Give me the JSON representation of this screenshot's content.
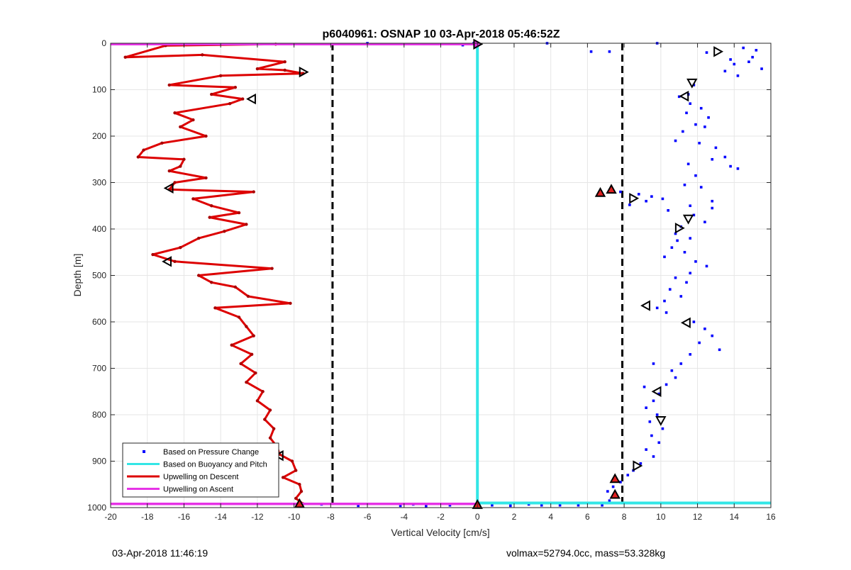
{
  "chart_data": {
    "type": "scatter",
    "title": "p6040961: OSNAP 10 03-Apr-2018 05:46:52Z",
    "xlabel": "Vertical Velocity [cm/s]",
    "ylabel": "Depth [m]",
    "xlim": [
      -20,
      16
    ],
    "ylim": [
      1000,
      0
    ],
    "y_reversed": true,
    "grid": true,
    "x_ticks": [
      "-20",
      "-18",
      "-16",
      "-14",
      "-12",
      "-10",
      "-8",
      "-6",
      "-4",
      "-2",
      "0",
      "2",
      "4",
      "6",
      "8",
      "10",
      "12",
      "14",
      "16"
    ],
    "y_ticks": [
      "0",
      "100",
      "200",
      "300",
      "400",
      "500",
      "600",
      "700",
      "800",
      "900",
      "1000"
    ],
    "legend_position": "bottom-left",
    "legend": [
      {
        "label": "Based on Pressure Change",
        "color": "#0000ff",
        "style": "dot"
      },
      {
        "label": "Based on Buoyancy and Pitch",
        "color": "#33e6e6",
        "style": "line"
      },
      {
        "label": "Upwelling on Descent",
        "color": "#dd0000",
        "style": "line"
      },
      {
        "label": "Upwelling on Ascent",
        "color": "#e633e6",
        "style": "line"
      }
    ],
    "reference_lines_x": [
      -7.9,
      7.9
    ],
    "series": [
      {
        "name": "Based on Pressure Change",
        "color": "#0000ff",
        "points": [
          [
            14.5,
            10
          ],
          [
            15,
            30
          ],
          [
            14,
            45
          ],
          [
            13.5,
            60
          ],
          [
            15.5,
            55
          ],
          [
            12.5,
            20
          ],
          [
            14.2,
            70
          ],
          [
            14.8,
            40
          ],
          [
            15.2,
            15
          ],
          [
            13.8,
            35
          ],
          [
            11.8,
            90
          ],
          [
            11.5,
            110
          ],
          [
            11,
            115
          ],
          [
            11.6,
            130
          ],
          [
            12.2,
            140
          ],
          [
            11.4,
            150
          ],
          [
            12.6,
            160
          ],
          [
            11.9,
            175
          ],
          [
            12.4,
            180
          ],
          [
            11.2,
            190
          ],
          [
            10.8,
            210
          ],
          [
            12.1,
            215
          ],
          [
            13,
            225
          ],
          [
            13.5,
            245
          ],
          [
            13.8,
            265
          ],
          [
            14.2,
            270
          ],
          [
            12.8,
            250
          ],
          [
            11.5,
            260
          ],
          [
            11.9,
            285
          ],
          [
            11.3,
            305
          ],
          [
            12.2,
            310
          ],
          [
            12.8,
            340
          ],
          [
            11.6,
            350
          ],
          [
            10.4,
            360
          ],
          [
            11.8,
            370
          ],
          [
            12.4,
            385
          ],
          [
            11.1,
            395
          ],
          [
            10.8,
            410
          ],
          [
            11.6,
            420
          ],
          [
            10.6,
            440
          ],
          [
            11.3,
            450
          ],
          [
            10.2,
            460
          ],
          [
            11.9,
            470
          ],
          [
            12.5,
            480
          ],
          [
            11.6,
            495
          ],
          [
            10.8,
            505
          ],
          [
            11.4,
            515
          ],
          [
            10.5,
            530
          ],
          [
            11.1,
            545
          ],
          [
            10.2,
            555
          ],
          [
            9.8,
            570
          ],
          [
            10.3,
            580
          ],
          [
            11.8,
            600
          ],
          [
            12.4,
            615
          ],
          [
            12.8,
            630
          ],
          [
            12.1,
            645
          ],
          [
            13.2,
            660
          ],
          [
            11.6,
            670
          ],
          [
            11.1,
            690
          ],
          [
            10.6,
            705
          ],
          [
            10.8,
            720
          ],
          [
            10.3,
            735
          ],
          [
            9.9,
            755
          ],
          [
            9.6,
            770
          ],
          [
            9.2,
            785
          ],
          [
            9.8,
            800
          ],
          [
            9.4,
            815
          ],
          [
            10.1,
            830
          ],
          [
            9.5,
            845
          ],
          [
            9.9,
            860
          ],
          [
            9.2,
            875
          ],
          [
            9.6,
            890
          ],
          [
            8.9,
            905
          ],
          [
            8.5,
            920
          ],
          [
            8.2,
            930
          ],
          [
            7.8,
            945
          ],
          [
            7.4,
            955
          ],
          [
            7.1,
            965
          ],
          [
            7.6,
            975
          ],
          [
            7.2,
            985
          ],
          [
            6.8,
            995
          ],
          [
            5.5,
            995
          ],
          [
            4.5,
            995
          ],
          [
            3.5,
            995
          ],
          [
            2.8,
            993
          ],
          [
            1.8,
            996
          ],
          [
            0.8,
            995
          ],
          [
            -1.5,
            995
          ],
          [
            -2.8,
            997
          ],
          [
            -3.5,
            993
          ],
          [
            -4.2,
            996
          ],
          [
            -6.5,
            996
          ],
          [
            -8.5,
            993
          ],
          [
            9.5,
            330
          ],
          [
            8.8,
            325
          ],
          [
            9.2,
            340
          ],
          [
            10.1,
            335
          ],
          [
            7.8,
            320
          ],
          [
            8.3,
            348
          ],
          [
            6.2,
            18
          ],
          [
            3.8,
            0
          ],
          [
            7.2,
            18
          ],
          [
            9.8,
            0
          ],
          [
            -0.8,
            4
          ],
          [
            -0.2,
            0
          ],
          [
            -6,
            0
          ],
          [
            12.8,
            355
          ],
          [
            10.9,
            425
          ],
          [
            9.6,
            690
          ],
          [
            9.1,
            740
          ]
        ]
      },
      {
        "name": "Based on Buoyancy and Pitch",
        "color": "#33e6e6",
        "points": [
          [
            0,
            0
          ],
          [
            0,
            990
          ],
          [
            16,
            990
          ]
        ]
      },
      {
        "name": "Upwelling on Descent",
        "color": "#dd0000",
        "points": [
          [
            -11,
            2
          ],
          [
            -17,
            5
          ],
          [
            -19.2,
            30
          ],
          [
            -15,
            25
          ],
          [
            -10.5,
            40
          ],
          [
            -12,
            55
          ],
          [
            -10.5,
            58
          ],
          [
            -9.5,
            65
          ],
          [
            -14,
            70
          ],
          [
            -16.8,
            90
          ],
          [
            -13.2,
            95
          ],
          [
            -14.5,
            110
          ],
          [
            -12.8,
            120
          ],
          [
            -13.5,
            130
          ],
          [
            -16.5,
            150
          ],
          [
            -15.5,
            165
          ],
          [
            -16.2,
            180
          ],
          [
            -14.8,
            200
          ],
          [
            -17.2,
            215
          ],
          [
            -18.2,
            230
          ],
          [
            -18.5,
            245
          ],
          [
            -16,
            250
          ],
          [
            -16.2,
            265
          ],
          [
            -16.8,
            275
          ],
          [
            -14.8,
            290
          ],
          [
            -16.5,
            300
          ],
          [
            -16.8,
            315
          ],
          [
            -12.2,
            320
          ],
          [
            -15.5,
            335
          ],
          [
            -14.5,
            350
          ],
          [
            -13,
            365
          ],
          [
            -14.6,
            375
          ],
          [
            -12.6,
            390
          ],
          [
            -13.8,
            405
          ],
          [
            -15.2,
            420
          ],
          [
            -16.2,
            440
          ],
          [
            -17.7,
            455
          ],
          [
            -16.5,
            470
          ],
          [
            -11.2,
            485
          ],
          [
            -15.2,
            500
          ],
          [
            -14.5,
            515
          ],
          [
            -13.2,
            525
          ],
          [
            -12.5,
            545
          ],
          [
            -10.2,
            560
          ],
          [
            -14.3,
            570
          ],
          [
            -13,
            590
          ],
          [
            -12.6,
            610
          ],
          [
            -12.2,
            630
          ],
          [
            -13.4,
            650
          ],
          [
            -12.3,
            670
          ],
          [
            -12.9,
            690
          ],
          [
            -12.1,
            710
          ],
          [
            -12.6,
            730
          ],
          [
            -11.7,
            750
          ],
          [
            -12,
            770
          ],
          [
            -11.3,
            790
          ],
          [
            -11.6,
            810
          ],
          [
            -11.1,
            830
          ],
          [
            -11.3,
            850
          ],
          [
            -10.9,
            870
          ],
          [
            -10.8,
            885
          ],
          [
            -10.1,
            900
          ],
          [
            -9.9,
            920
          ],
          [
            -10.6,
            935
          ],
          [
            -9.7,
            950
          ],
          [
            -9.6,
            965
          ],
          [
            -9.9,
            980
          ],
          [
            -9.5,
            992
          ]
        ]
      },
      {
        "name": "Upwelling on Ascent",
        "color": "#e633e6",
        "points": [
          [
            -20,
            2
          ],
          [
            0,
            2
          ],
          [
            -20,
            992
          ],
          [
            0,
            992
          ]
        ]
      }
    ],
    "markers": [
      {
        "kind": "open-right",
        "x": 0,
        "y": 2,
        "color": "#e633e6"
      },
      {
        "kind": "open-right",
        "x": -9.5,
        "y": 62
      },
      {
        "kind": "open-left",
        "x": -12.3,
        "y": 120
      },
      {
        "kind": "open-left",
        "x": -16.8,
        "y": 312
      },
      {
        "kind": "open-left",
        "x": -16.9,
        "y": 470
      },
      {
        "kind": "open-left",
        "x": -10.8,
        "y": 888
      },
      {
        "kind": "filled-up",
        "x": -9.7,
        "y": 992
      },
      {
        "kind": "filled-up",
        "x": 0,
        "y": 994
      },
      {
        "kind": "open-right",
        "x": 13.1,
        "y": 18
      },
      {
        "kind": "open-down",
        "x": 11.7,
        "y": 85
      },
      {
        "kind": "open-left",
        "x": 11.3,
        "y": 114
      },
      {
        "kind": "filled-up",
        "x": 6.7,
        "y": 322
      },
      {
        "kind": "filled-up",
        "x": 7.3,
        "y": 315
      },
      {
        "kind": "open-right",
        "x": 8.5,
        "y": 334
      },
      {
        "kind": "open-down",
        "x": 11.5,
        "y": 378
      },
      {
        "kind": "open-right",
        "x": 11.0,
        "y": 398
      },
      {
        "kind": "open-left",
        "x": 9.2,
        "y": 565
      },
      {
        "kind": "open-left",
        "x": 11.4,
        "y": 602
      },
      {
        "kind": "open-left",
        "x": 9.8,
        "y": 750
      },
      {
        "kind": "open-down",
        "x": 10.0,
        "y": 812
      },
      {
        "kind": "open-right",
        "x": 8.7,
        "y": 910
      },
      {
        "kind": "filled-up",
        "x": 7.5,
        "y": 938
      },
      {
        "kind": "filled-up",
        "x": 7.5,
        "y": 972
      }
    ]
  },
  "footer": {
    "left": "03-Apr-2018 11:46:19",
    "right": "volmax=52794.0cc, mass=53.328kg"
  }
}
